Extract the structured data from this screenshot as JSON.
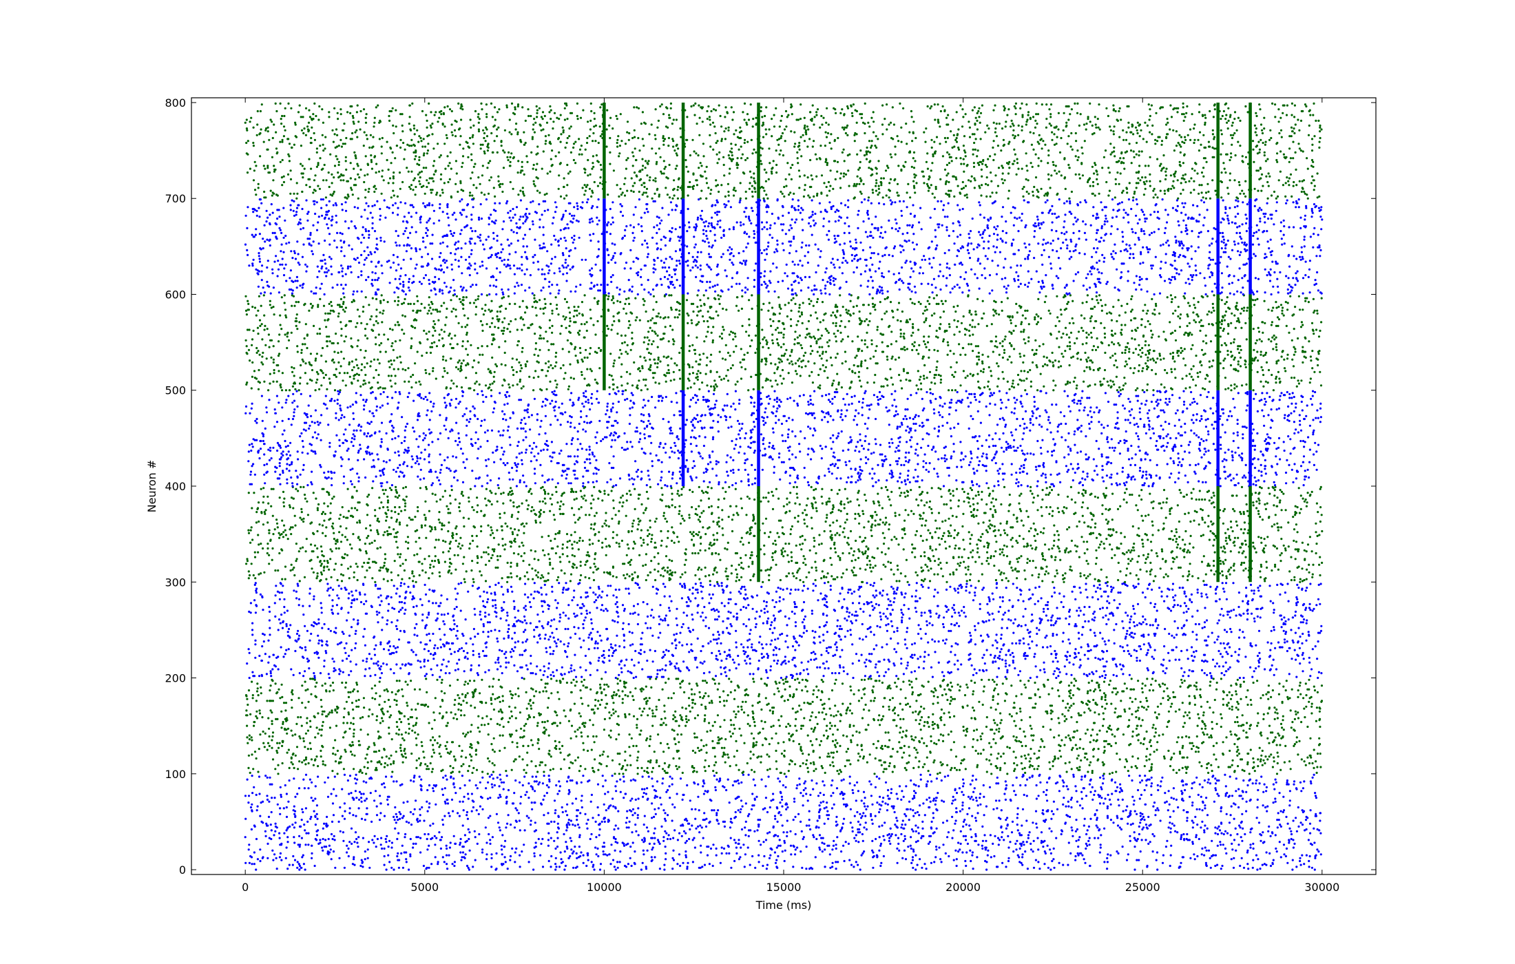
{
  "chart_data": {
    "type": "scatter",
    "title": "",
    "xlabel": "Time (ms)",
    "ylabel": "Neuron #",
    "xlim": [
      -1500,
      31500
    ],
    "ylim": [
      -5,
      805
    ],
    "x_ticks": [
      0,
      5000,
      10000,
      15000,
      20000,
      25000,
      30000
    ],
    "x_tick_labels": [
      "0",
      "5000",
      "10000",
      "15000",
      "20000",
      "25000",
      "30000"
    ],
    "y_ticks": [
      0,
      100,
      200,
      300,
      400,
      500,
      600,
      700,
      800
    ],
    "y_tick_labels": [
      "0",
      "100",
      "200",
      "300",
      "400",
      "500",
      "600",
      "700",
      "800"
    ],
    "grid": false,
    "legend": "none",
    "spike_time_range": [
      0,
      30000
    ],
    "neuron_groups": [
      {
        "neurons": [
          0,
          100
        ],
        "color": "#0000ff"
      },
      {
        "neurons": [
          100,
          200
        ],
        "color": "#006400"
      },
      {
        "neurons": [
          200,
          300
        ],
        "color": "#0000ff"
      },
      {
        "neurons": [
          300,
          400
        ],
        "color": "#006400"
      },
      {
        "neurons": [
          400,
          500
        ],
        "color": "#0000ff"
      },
      {
        "neurons": [
          500,
          600
        ],
        "color": "#006400"
      },
      {
        "neurons": [
          600,
          700
        ],
        "color": "#0000ff"
      },
      {
        "neurons": [
          700,
          800
        ],
        "color": "#006400"
      }
    ],
    "synchronous_events": [
      {
        "time": 10000,
        "neurons": [
          500,
          800
        ]
      },
      {
        "time": 12200,
        "neurons": [
          400,
          800
        ]
      },
      {
        "time": 14300,
        "neurons": [
          300,
          800
        ]
      },
      {
        "time": 27100,
        "neurons": [
          300,
          800
        ]
      },
      {
        "time": 28000,
        "neurons": [
          300,
          800
        ]
      }
    ]
  }
}
